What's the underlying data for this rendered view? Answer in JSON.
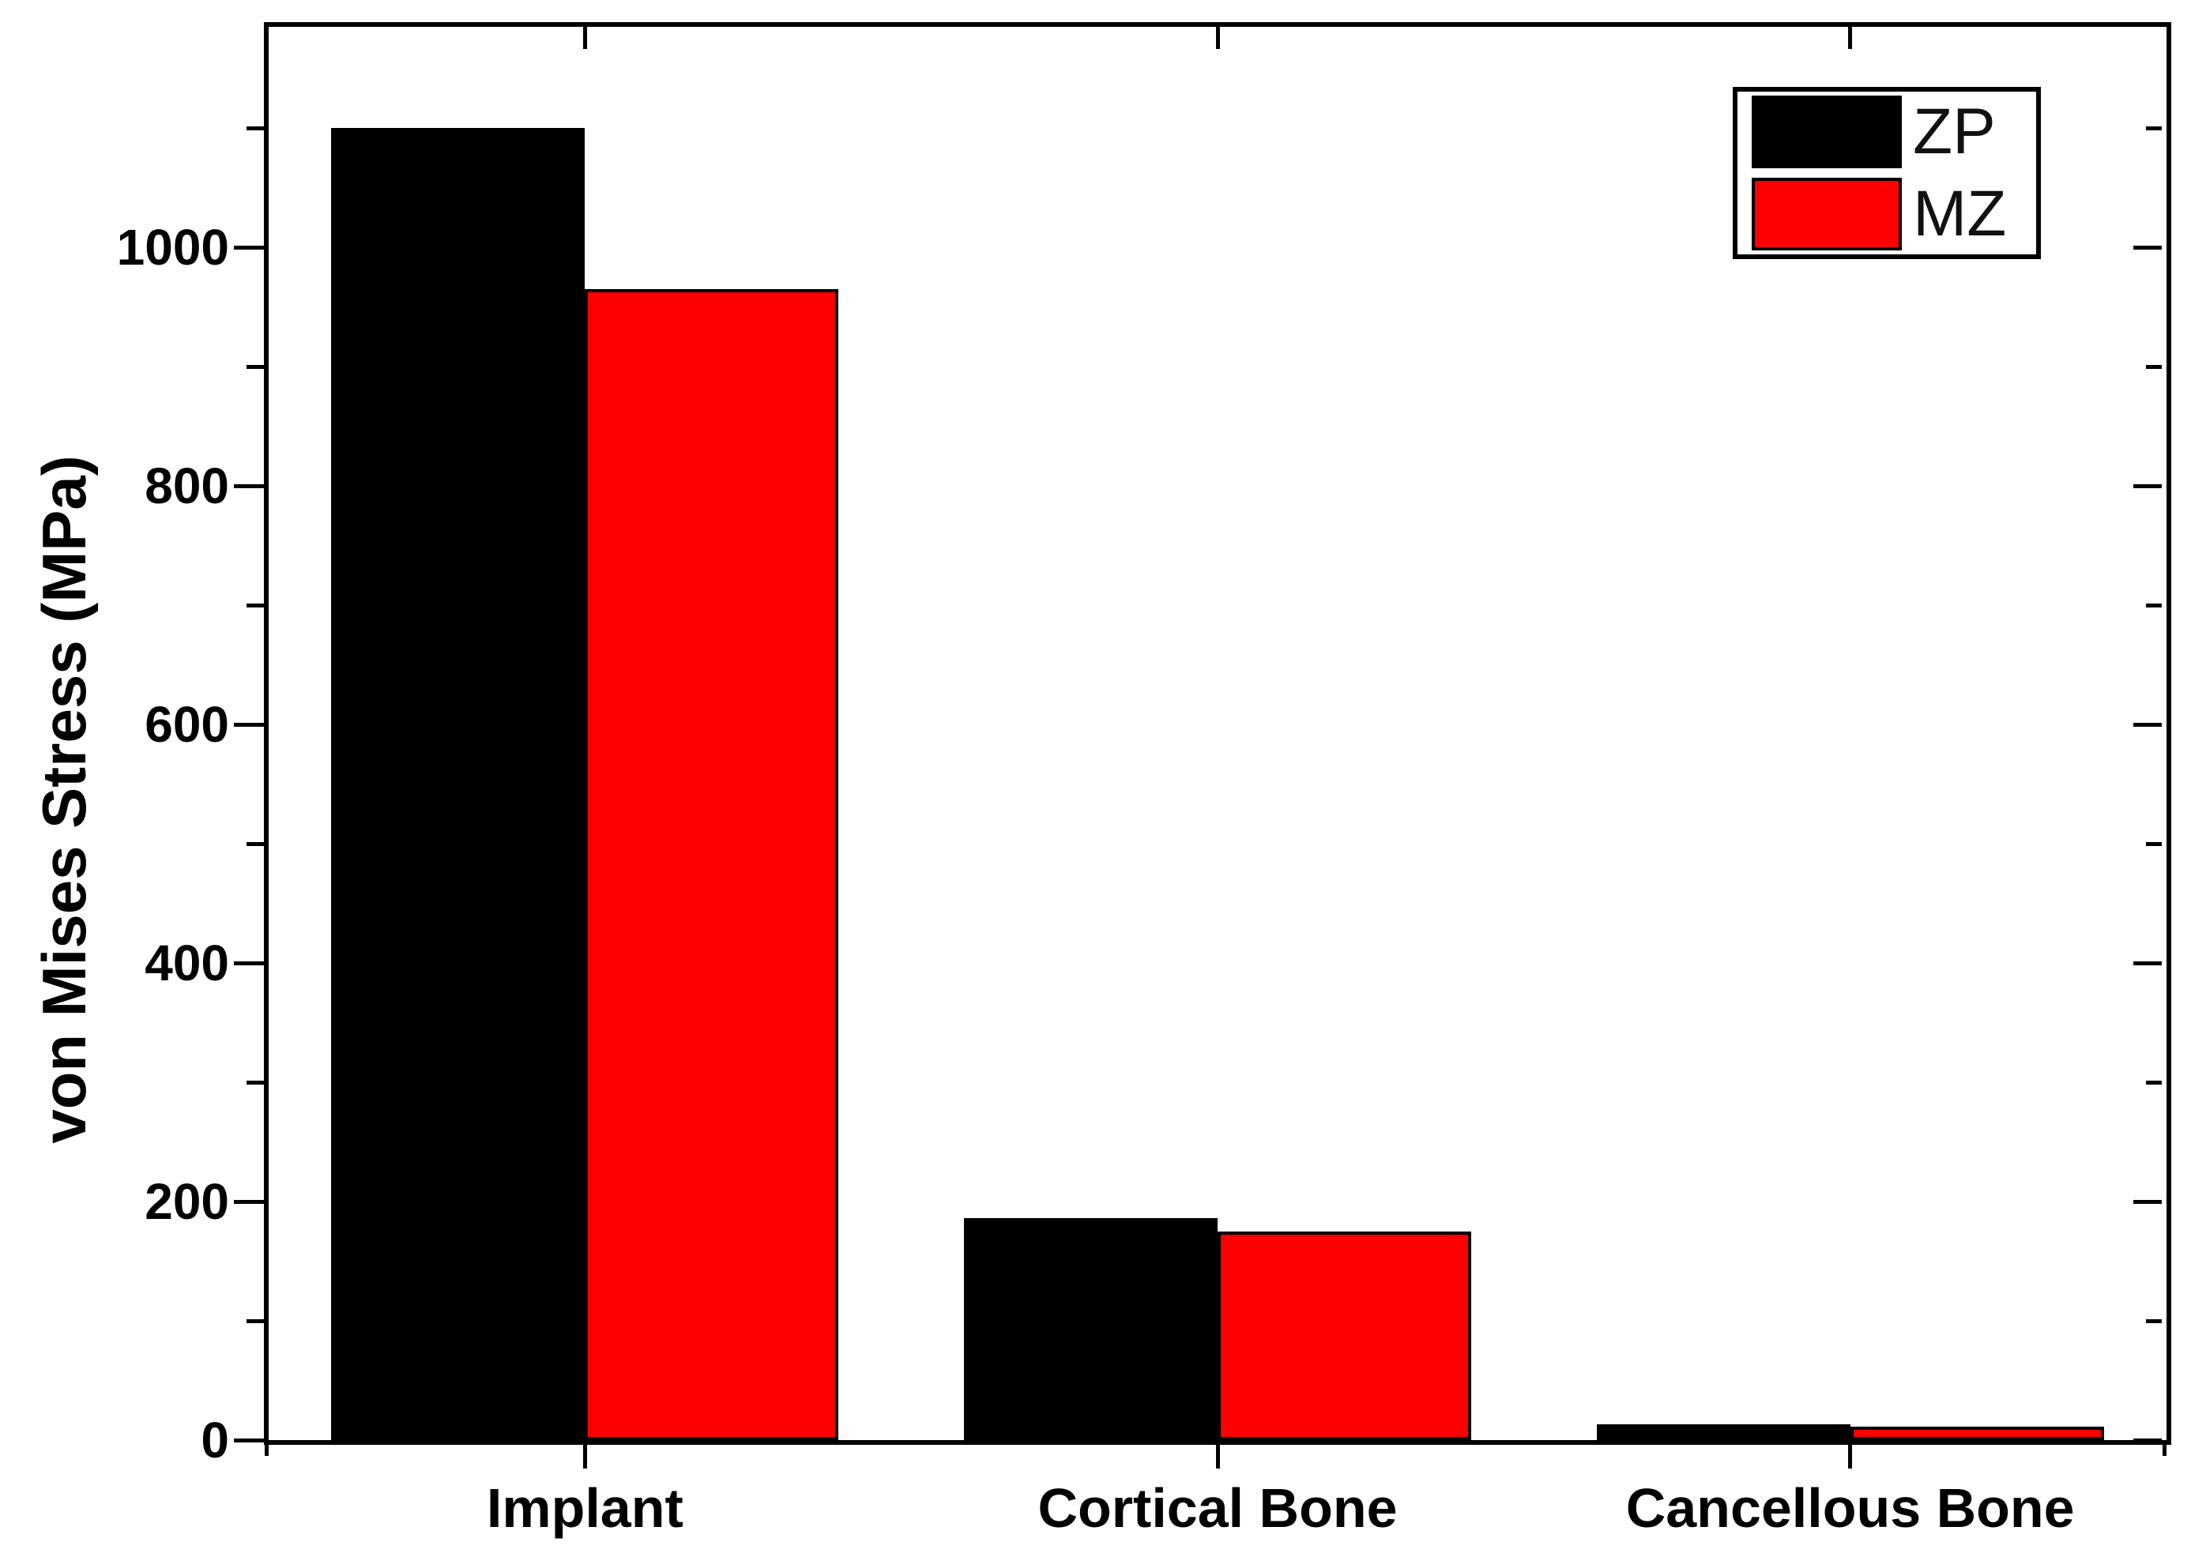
{
  "figure": {
    "background_color": "#ffffff",
    "frame_color": "#000000",
    "text_color": "#000000"
  },
  "chart_data": {
    "type": "bar",
    "title": "",
    "xlabel": "",
    "ylabel": "von Mises Stress (MPa)",
    "categories": [
      "Implant",
      "Cortical Bone",
      "Cancellous Bone"
    ],
    "series": [
      {
        "name": "ZP",
        "color": "#000000",
        "values": [
          1100,
          186,
          13
        ]
      },
      {
        "name": "MZ",
        "color": "#ff0000",
        "values": [
          965,
          175,
          11
        ]
      }
    ],
    "ylim": [
      0,
      1185
    ],
    "y_major_ticks": [
      0,
      200,
      400,
      600,
      800,
      1000
    ],
    "y_tick_labels": [
      "0",
      "200",
      "400",
      "600",
      "800",
      "1000"
    ],
    "y_minor_tick_step": 100,
    "grid": false,
    "legend_position": "top-right",
    "legend_entries": [
      "ZP",
      "MZ"
    ],
    "mirror_ticks": true
  }
}
